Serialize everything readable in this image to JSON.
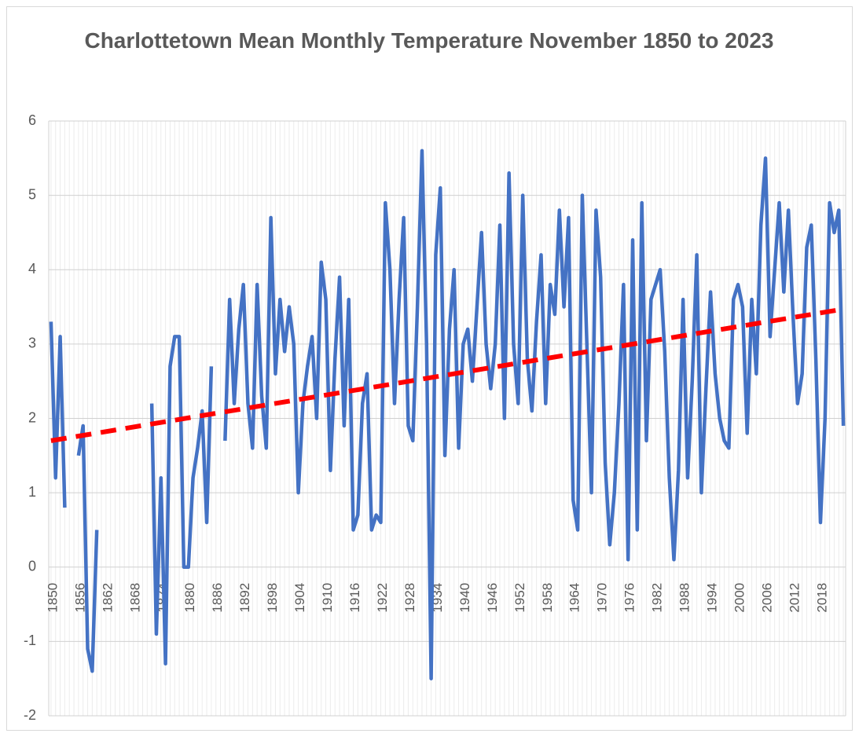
{
  "chart_data": {
    "type": "line",
    "title": "Charlottetown Mean Monthly Temperature November 1850 to 2023",
    "x": [
      1850,
      1851,
      1852,
      1853,
      1854,
      1855,
      1856,
      1857,
      1858,
      1859,
      1860,
      1861,
      1862,
      1863,
      1864,
      1865,
      1866,
      1867,
      1868,
      1869,
      1870,
      1871,
      1872,
      1873,
      1874,
      1875,
      1876,
      1877,
      1878,
      1879,
      1880,
      1881,
      1882,
      1883,
      1884,
      1885,
      1886,
      1887,
      1888,
      1889,
      1890,
      1891,
      1892,
      1893,
      1894,
      1895,
      1896,
      1897,
      1898,
      1899,
      1900,
      1901,
      1902,
      1903,
      1904,
      1905,
      1906,
      1907,
      1908,
      1909,
      1910,
      1911,
      1912,
      1913,
      1914,
      1915,
      1916,
      1917,
      1918,
      1919,
      1920,
      1921,
      1922,
      1923,
      1924,
      1925,
      1926,
      1927,
      1928,
      1929,
      1930,
      1931,
      1932,
      1933,
      1934,
      1935,
      1936,
      1937,
      1938,
      1939,
      1940,
      1941,
      1942,
      1943,
      1944,
      1945,
      1946,
      1947,
      1948,
      1949,
      1950,
      1951,
      1952,
      1953,
      1954,
      1955,
      1956,
      1957,
      1958,
      1959,
      1960,
      1961,
      1962,
      1963,
      1964,
      1965,
      1966,
      1967,
      1968,
      1969,
      1970,
      1971,
      1972,
      1973,
      1974,
      1975,
      1976,
      1977,
      1978,
      1979,
      1980,
      1981,
      1982,
      1983,
      1984,
      1985,
      1986,
      1987,
      1988,
      1989,
      1990,
      1991,
      1992,
      1993,
      1994,
      1995,
      1996,
      1997,
      1998,
      1999,
      2000,
      2001,
      2002,
      2003,
      2004,
      2005,
      2006,
      2007,
      2008,
      2009,
      2010,
      2011,
      2012,
      2013,
      2014,
      2015,
      2016,
      2017,
      2018,
      2019,
      2020,
      2021,
      2022,
      2023
    ],
    "series": [
      {
        "color": "#4472c4",
        "values": [
          3.3,
          1.2,
          3.1,
          0.8,
          null,
          null,
          1.5,
          1.9,
          -1.1,
          -1.4,
          0.5,
          null,
          null,
          null,
          null,
          null,
          null,
          null,
          null,
          null,
          null,
          null,
          2.2,
          -0.9,
          1.2,
          -1.3,
          2.7,
          3.1,
          3.1,
          0,
          0,
          1.2,
          1.6,
          2.1,
          0.6,
          2.7,
          null,
          null,
          1.7,
          3.6,
          2.2,
          3.2,
          3.8,
          2.2,
          1.6,
          3.8,
          2.3,
          1.6,
          4.7,
          2.6,
          3.6,
          2.9,
          3.5,
          3.0,
          1.0,
          2.2,
          2.7,
          3.1,
          2.0,
          4.1,
          3.6,
          1.3,
          2.8,
          3.9,
          1.9,
          3.6,
          0.5,
          0.7,
          2.2,
          2.6,
          0.5,
          0.7,
          0.6,
          4.9,
          4.0,
          2.2,
          3.6,
          4.7,
          1.9,
          1.7,
          3.5,
          5.6,
          3.0,
          -1.5,
          4.2,
          5.1,
          1.5,
          3.2,
          4.0,
          1.6,
          3.0,
          3.2,
          2.5,
          3.5,
          4.5,
          3.0,
          2.4,
          3.0,
          4.6,
          2.0,
          5.3,
          3.0,
          2.2,
          5.0,
          2.8,
          2.1,
          3.3,
          4.2,
          2.2,
          3.8,
          3.4,
          4.8,
          3.5,
          4.7,
          0.9,
          0.5,
          5.0,
          3.0,
          1.0,
          4.8,
          3.9,
          1.4,
          0.3,
          1.0,
          2.2,
          3.8,
          0.1,
          4.4,
          0.5,
          4.9,
          1.7,
          3.6,
          3.8,
          4.0,
          2.9,
          1.2,
          0.1,
          1.3,
          3.6,
          1.2,
          2.5,
          4.2,
          1.0,
          2.4,
          3.7,
          2.6,
          2.0,
          1.7,
          1.6,
          3.6,
          3.8,
          3.5,
          1.8,
          3.6,
          2.6,
          4.6,
          5.5,
          3.1,
          4.0,
          4.9,
          3.7,
          4.8,
          3.4,
          2.2,
          2.6,
          4.3,
          4.6,
          2.8,
          0.6,
          2.0,
          4.9,
          4.5,
          4.8,
          1.9
        ]
      }
    ],
    "trendline": {
      "type": "linear",
      "color": "#ff0000",
      "x": [
        1850,
        2023
      ],
      "values": [
        1.7,
        3.47
      ]
    },
    "xlim": [
      1849.5,
      2023.5
    ],
    "xticks": [
      1850,
      1856,
      1862,
      1868,
      1874,
      1880,
      1886,
      1892,
      1898,
      1904,
      1910,
      1916,
      1922,
      1928,
      1934,
      1940,
      1946,
      1952,
      1958,
      1964,
      1970,
      1976,
      1982,
      1988,
      1994,
      2000,
      2006,
      2012,
      2018
    ],
    "ylim": [
      -2,
      6
    ],
    "yticks": [
      -2,
      -1,
      0,
      1,
      2,
      3,
      4,
      5,
      6
    ],
    "grid": true,
    "minor_x_grid": true
  }
}
